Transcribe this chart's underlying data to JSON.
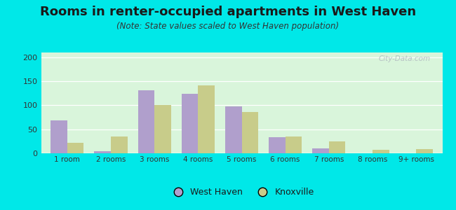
{
  "title": "Rooms in renter-occupied apartments in West Haven",
  "subtitle": "(Note: State values scaled to West Haven population)",
  "categories": [
    "1 room",
    "2 rooms",
    "3 rooms",
    "4 rooms",
    "5 rooms",
    "6 rooms",
    "7 rooms",
    "8 rooms",
    "9+ rooms"
  ],
  "west_haven": [
    68,
    5,
    131,
    124,
    97,
    33,
    10,
    0,
    0
  ],
  "knoxville": [
    22,
    35,
    100,
    142,
    86,
    35,
    25,
    7,
    9
  ],
  "west_haven_color": "#b09fcc",
  "knoxville_color": "#c8cc8a",
  "background_outer": "#00e8e8",
  "ylim": [
    0,
    210
  ],
  "yticks": [
    0,
    50,
    100,
    150,
    200
  ],
  "bar_width": 0.38,
  "title_fontsize": 13,
  "subtitle_fontsize": 8.5,
  "watermark_text": "City-Data.com"
}
